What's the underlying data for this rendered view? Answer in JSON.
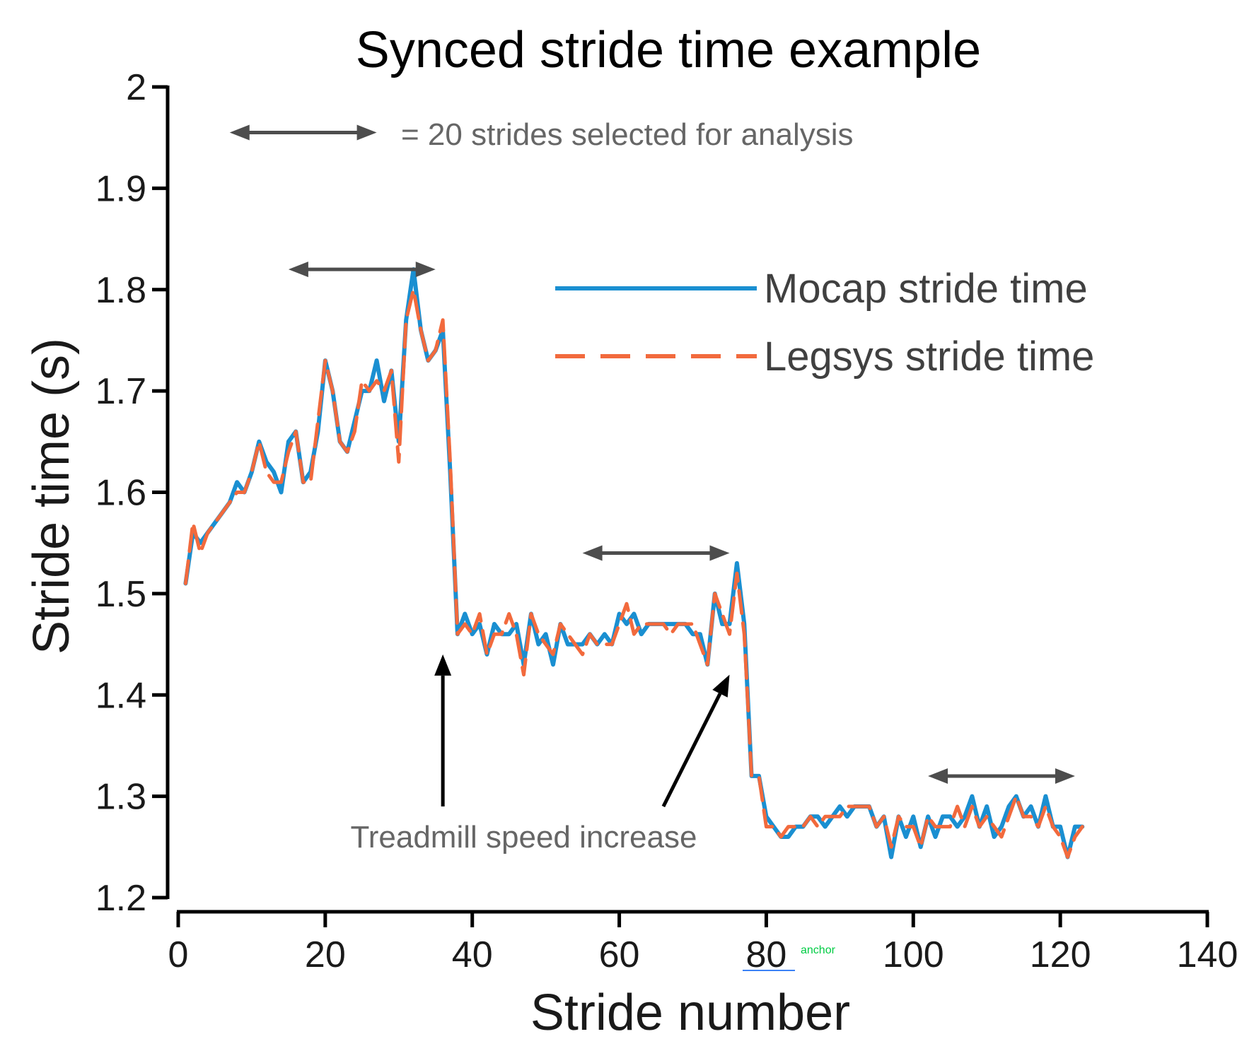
{
  "chart_data": {
    "type": "line",
    "title": "Synced stride time example",
    "xlabel": "Stride number",
    "ylabel": "Stride time (s)",
    "xlim": [
      0,
      140
    ],
    "ylim": [
      1.2,
      2.0
    ],
    "xticks": [
      0,
      20,
      40,
      60,
      80,
      100,
      120,
      140
    ],
    "yticks": [
      1.2,
      1.3,
      1.4,
      1.5,
      1.6,
      1.7,
      1.8,
      1.9,
      2.0
    ],
    "xtick_labels": [
      "0",
      "20",
      "40",
      "60",
      "80",
      "100",
      "120",
      "140"
    ],
    "ytick_labels": [
      "1.2",
      "1.3",
      "1.4",
      "1.5",
      "1.6",
      "1.7",
      "1.8",
      "1.9",
      "2"
    ],
    "grid": false,
    "legend_position": "top-right",
    "x": [
      1,
      2,
      3,
      4,
      5,
      6,
      7,
      8,
      9,
      10,
      11,
      12,
      13,
      14,
      15,
      16,
      17,
      18,
      19,
      20,
      21,
      22,
      23,
      24,
      25,
      26,
      27,
      28,
      29,
      30,
      31,
      32,
      33,
      34,
      35,
      36,
      37,
      38,
      39,
      40,
      41,
      42,
      43,
      44,
      45,
      46,
      47,
      48,
      49,
      50,
      51,
      52,
      53,
      54,
      55,
      56,
      57,
      58,
      59,
      60,
      61,
      62,
      63,
      64,
      65,
      66,
      67,
      68,
      69,
      70,
      71,
      72,
      73,
      74,
      75,
      76,
      77,
      78,
      79,
      80,
      81,
      82,
      83,
      84,
      85,
      86,
      87,
      88,
      89,
      90,
      91,
      92,
      93,
      94,
      95,
      96,
      97,
      98,
      99,
      100,
      101,
      102,
      103,
      104,
      105,
      106,
      107,
      108,
      109,
      110,
      111,
      112,
      113,
      114,
      115,
      116,
      117,
      118,
      119,
      120,
      121,
      122,
      123
    ],
    "series": [
      {
        "name": "Mocap stride time",
        "color": "#1a8fd1",
        "style": "solid",
        "values": [
          1.51,
          1.56,
          1.55,
          1.56,
          1.57,
          1.58,
          1.59,
          1.61,
          1.6,
          1.62,
          1.65,
          1.63,
          1.62,
          1.6,
          1.65,
          1.66,
          1.61,
          1.62,
          1.66,
          1.73,
          1.7,
          1.65,
          1.64,
          1.67,
          1.7,
          1.7,
          1.73,
          1.69,
          1.72,
          1.65,
          1.77,
          1.82,
          1.76,
          1.73,
          1.74,
          1.76,
          1.62,
          1.46,
          1.48,
          1.46,
          1.47,
          1.44,
          1.47,
          1.46,
          1.46,
          1.47,
          1.43,
          1.48,
          1.45,
          1.46,
          1.43,
          1.47,
          1.45,
          1.45,
          1.45,
          1.46,
          1.45,
          1.46,
          1.45,
          1.48,
          1.47,
          1.48,
          1.46,
          1.47,
          1.47,
          1.47,
          1.47,
          1.47,
          1.47,
          1.46,
          1.46,
          1.43,
          1.5,
          1.47,
          1.47,
          1.53,
          1.47,
          1.32,
          1.32,
          1.28,
          1.27,
          1.26,
          1.26,
          1.27,
          1.27,
          1.28,
          1.28,
          1.27,
          1.28,
          1.29,
          1.28,
          1.29,
          1.29,
          1.29,
          1.27,
          1.28,
          1.24,
          1.28,
          1.26,
          1.28,
          1.25,
          1.28,
          1.26,
          1.28,
          1.28,
          1.27,
          1.28,
          1.3,
          1.27,
          1.29,
          1.26,
          1.27,
          1.29,
          1.3,
          1.28,
          1.29,
          1.27,
          1.3,
          1.27,
          1.27,
          1.24,
          1.27,
          1.27
        ]
      },
      {
        "name": "Legsys stride time",
        "color": "#f26a3d",
        "style": "dashed",
        "values": [
          1.51,
          1.57,
          1.54,
          1.56,
          1.57,
          1.58,
          1.59,
          1.6,
          1.6,
          1.62,
          1.65,
          1.62,
          1.61,
          1.61,
          1.64,
          1.66,
          1.61,
          1.61,
          1.67,
          1.73,
          1.7,
          1.65,
          1.64,
          1.66,
          1.71,
          1.7,
          1.71,
          1.7,
          1.72,
          1.63,
          1.77,
          1.8,
          1.76,
          1.73,
          1.74,
          1.77,
          1.63,
          1.46,
          1.47,
          1.46,
          1.48,
          1.44,
          1.46,
          1.46,
          1.48,
          1.46,
          1.42,
          1.48,
          1.46,
          1.45,
          1.44,
          1.47,
          1.46,
          1.45,
          1.44,
          1.46,
          1.45,
          1.45,
          1.45,
          1.47,
          1.49,
          1.46,
          1.47,
          1.47,
          1.47,
          1.47,
          1.46,
          1.47,
          1.47,
          1.47,
          1.45,
          1.43,
          1.5,
          1.48,
          1.46,
          1.52,
          1.46,
          1.32,
          1.32,
          1.27,
          1.27,
          1.26,
          1.27,
          1.27,
          1.27,
          1.28,
          1.27,
          1.28,
          1.28,
          1.28,
          1.29,
          1.29,
          1.29,
          1.29,
          1.27,
          1.28,
          1.25,
          1.28,
          1.27,
          1.27,
          1.25,
          1.28,
          1.27,
          1.27,
          1.27,
          1.29,
          1.27,
          1.29,
          1.27,
          1.28,
          1.27,
          1.26,
          1.28,
          1.3,
          1.28,
          1.28,
          1.27,
          1.29,
          1.27,
          1.26,
          1.24,
          1.26,
          1.27
        ]
      }
    ],
    "range_markers": [
      {
        "x_start": 15,
        "x_end": 35,
        "y": 1.82
      },
      {
        "x_start": 55,
        "x_end": 75,
        "y": 1.54
      },
      {
        "x_start": 102,
        "x_end": 122,
        "y": 1.32
      }
    ],
    "legend_marker": {
      "x_start": 7,
      "x_end": 27,
      "y": 1.955,
      "text": "= 20 strides selected for analysis"
    },
    "annotation": {
      "text": "Treadmill speed increase",
      "text_x": 47,
      "text_y": 1.26,
      "arrows": [
        {
          "from_x": 36,
          "from_y": 1.29,
          "to_x": 36,
          "to_y": 1.44
        },
        {
          "from_x": 66,
          "from_y": 1.29,
          "to_x": 75,
          "to_y": 1.42
        }
      ]
    },
    "anchor_label": "anchor"
  },
  "colors": {
    "mocap": "#1a8fd1",
    "legsys": "#f26a3d",
    "marker": "#4d4d4d",
    "axis": "#000000"
  }
}
